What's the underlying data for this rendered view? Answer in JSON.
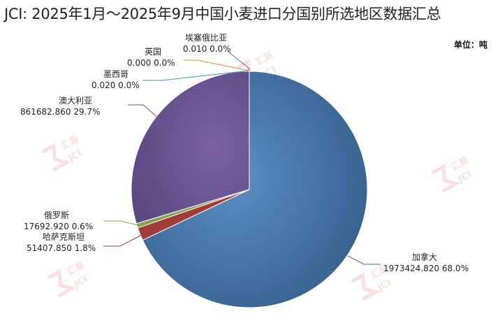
{
  "title": "JCI: 2025年1月～2025年9月中国小麦进口分国别所选地区数据汇总",
  "unit_label": "单位：吨",
  "watermark_text": [
    "汇易",
    "JCI"
  ],
  "chart_data": {
    "type": "pie",
    "title": "JCI: 2025年1月～2025年9月中国小麦进口分国别所选地区数据汇总",
    "unit": "单位：吨",
    "legend": "none",
    "slices": [
      {
        "name": "埃塞俄比亚",
        "value": 0.01,
        "value_text": "0.010",
        "percent_text": "0.0%",
        "color": "#4a79a8"
      },
      {
        "name": "加拿大",
        "value": 1973424.82,
        "value_text": "1973424.820",
        "percent_text": "68.0%",
        "color": "#3d6a9a"
      },
      {
        "name": "哈萨克斯坦",
        "value": 51407.85,
        "value_text": "51407.850",
        "percent_text": "1.8%",
        "color": "#a23c3a"
      },
      {
        "name": "俄罗斯",
        "value": 17692.92,
        "value_text": "17692.920",
        "percent_text": "0.6%",
        "color": "#87a24a"
      },
      {
        "name": "澳大利亚",
        "value": 861682.86,
        "value_text": "861682.860",
        "percent_text": "29.7%",
        "color": "#6a5390"
      },
      {
        "name": "墨西哥",
        "value": 0.02,
        "value_text": "0.020",
        "percent_text": "0.0%",
        "color": "#3b9ab1"
      },
      {
        "name": "英国",
        "value": 0.0,
        "value_text": "0.000",
        "percent_text": "0.0%",
        "color": "#e08a3a"
      }
    ]
  }
}
